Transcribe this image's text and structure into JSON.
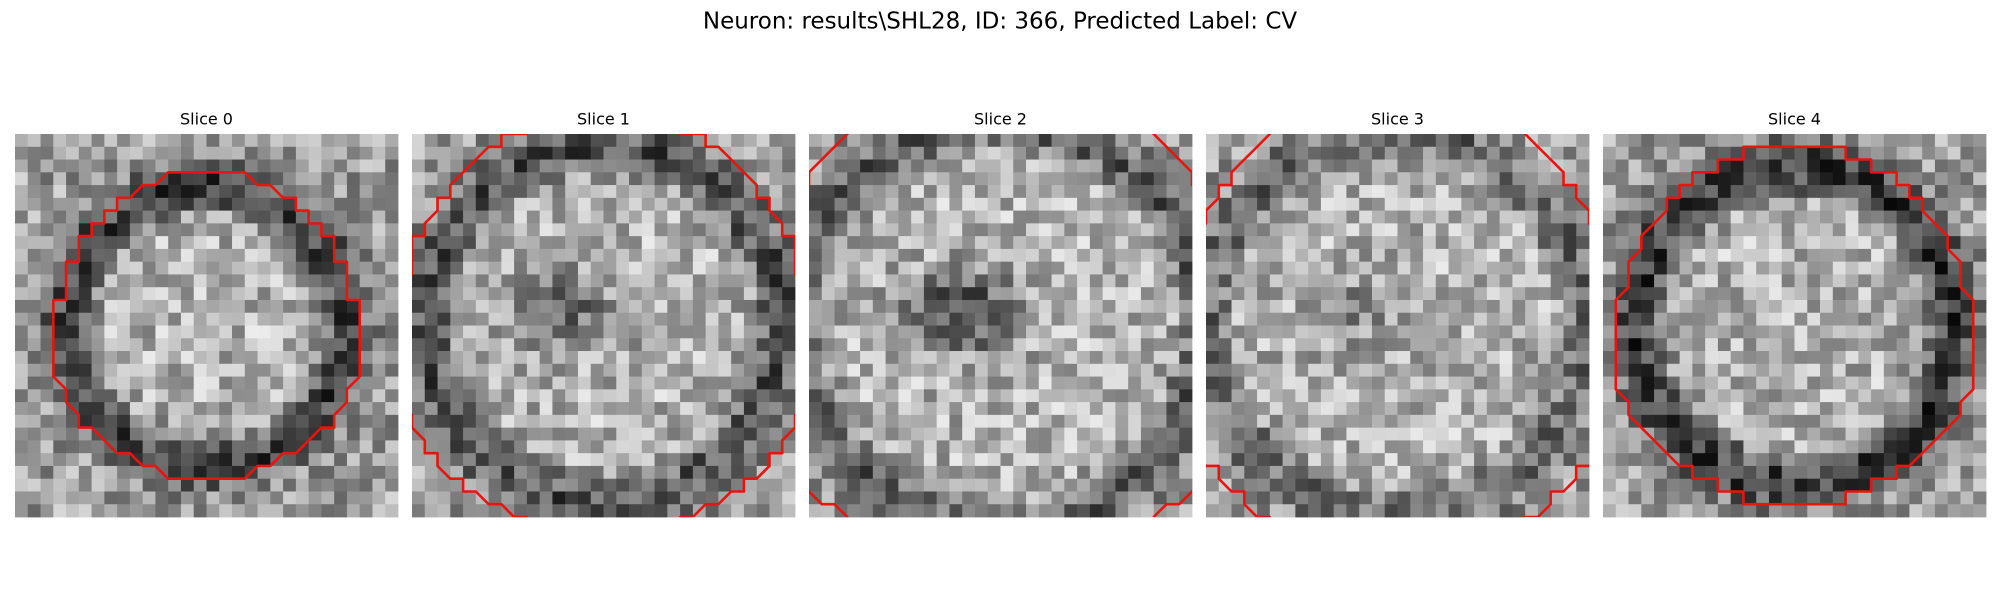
{
  "title": "Neuron: results\\SHL28, ID: 366, Predicted Label: CV",
  "panels": [
    {
      "title": "Slice 0"
    },
    {
      "title": "Slice 1"
    },
    {
      "title": "Slice 2"
    },
    {
      "title": "Slice 3"
    },
    {
      "title": "Slice 4"
    }
  ]
}
